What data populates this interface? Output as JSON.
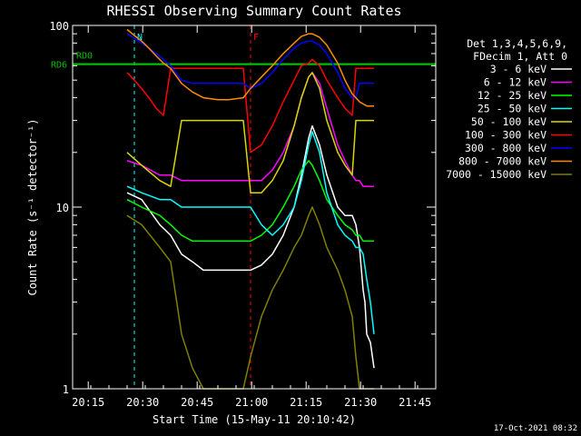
{
  "chart_data": {
    "type": "line",
    "title": "RHESSI Observing Summary Count Rates",
    "xlabel": "Start Time (15-May-11 20:10:42)",
    "ylabel": "Count Rate (s⁻¹ detector⁻¹)",
    "yscale": "log",
    "ylim": [
      1,
      100
    ],
    "xlim_minutes": [
      0,
      100
    ],
    "x_ticks": [
      {
        "label": "20:15",
        "t": 4.3
      },
      {
        "label": "20:30",
        "t": 19.3
      },
      {
        "label": "20:45",
        "t": 34.3
      },
      {
        "label": "21:00",
        "t": 49.3
      },
      {
        "label": "21:15",
        "t": 64.3
      },
      {
        "label": "21:30",
        "t": 79.3
      },
      {
        "label": "21:45",
        "t": 94.3
      }
    ],
    "y_ticks": [
      {
        "label": "1",
        "value": 1
      },
      {
        "label": "10",
        "value": 10
      },
      {
        "label": "100",
        "value": 100
      }
    ],
    "legend": {
      "placement": "top-right",
      "header": [
        "Det 1,3,4,5,6,9,",
        "FDecim 1, Att 0"
      ]
    },
    "series": [
      {
        "name": "3 - 6 keV",
        "color": "#ffffff",
        "x": [
          15,
          19,
          24,
          27,
          30,
          33,
          36,
          40,
          43,
          47,
          49,
          52,
          55,
          58,
          61,
          63,
          65,
          66,
          68,
          70,
          73,
          75,
          77,
          78,
          79,
          80,
          80.5,
          81,
          82,
          83
        ],
        "y": [
          12,
          11,
          8,
          7,
          5.5,
          5,
          4.5,
          4.5,
          4.5,
          4.5,
          4.5,
          4.8,
          5.5,
          7,
          10,
          15,
          24,
          28,
          22,
          15,
          10,
          9,
          9,
          8,
          6,
          3.5,
          3,
          2,
          1.8,
          1.3
        ]
      },
      {
        "name": "6 - 12 keV",
        "color": "#ff00ff",
        "x": [
          15,
          19,
          24,
          27,
          30,
          33,
          36,
          40,
          43,
          47,
          49,
          52,
          55,
          58,
          61,
          63,
          65,
          66,
          68,
          70,
          73,
          75,
          77,
          78,
          79,
          80,
          81,
          82,
          83
        ],
        "y": [
          18,
          17,
          15,
          15,
          14,
          14,
          14,
          14,
          14,
          14,
          14,
          14,
          16,
          20,
          28,
          40,
          52,
          55,
          48,
          35,
          22,
          18,
          15,
          14,
          14,
          13,
          13,
          13,
          13
        ]
      },
      {
        "name": "12 - 25 keV",
        "color": "#00ff00",
        "x": [
          15,
          19,
          24,
          27,
          30,
          33,
          36,
          40,
          43,
          47,
          49,
          52,
          55,
          58,
          61,
          63,
          65,
          66,
          68,
          70,
          73,
          75,
          77,
          78,
          79,
          80,
          81,
          82,
          83
        ],
        "y": [
          11,
          10,
          9,
          8,
          7,
          6.5,
          6.5,
          6.5,
          6.5,
          6.5,
          6.5,
          7,
          8,
          10,
          13,
          16,
          18,
          17,
          14,
          11,
          9,
          8,
          7.5,
          7,
          7,
          6.5,
          6.5,
          6.5,
          6.5
        ]
      },
      {
        "name": "25 - 50 keV",
        "color": "#00ffff",
        "x": [
          15,
          19,
          24,
          27,
          30,
          33,
          36,
          40,
          43,
          47,
          49,
          52,
          55,
          58,
          61,
          63,
          65,
          66,
          68,
          70,
          73,
          75,
          77,
          78,
          79,
          80,
          81,
          82,
          83
        ],
        "y": [
          13,
          12,
          11,
          11,
          10,
          10,
          10,
          10,
          10,
          10,
          10,
          8,
          7,
          8,
          10,
          14,
          22,
          26,
          20,
          12,
          8,
          7,
          6.5,
          6,
          6,
          5.5,
          4,
          3,
          2
        ]
      },
      {
        "name": "50 - 100 keV",
        "color": "#d8d800",
        "x": [
          15,
          19,
          24,
          27,
          30,
          33,
          36,
          40,
          43,
          47,
          49,
          52,
          55,
          58,
          61,
          63,
          65,
          66,
          68,
          70,
          73,
          75,
          77,
          78,
          79,
          80,
          81,
          82,
          83
        ],
        "y": [
          20,
          17,
          14,
          13,
          30,
          30,
          30,
          30,
          30,
          30,
          12,
          12,
          14,
          18,
          28,
          40,
          52,
          55,
          45,
          30,
          20,
          17,
          15,
          30,
          30,
          30,
          30,
          30,
          30
        ]
      },
      {
        "name": "100 - 300 keV",
        "color": "#ff0000",
        "x": [
          15,
          17,
          19,
          21,
          23,
          25,
          27,
          30,
          33,
          36,
          40,
          43,
          47,
          49,
          52,
          55,
          58,
          61,
          63,
          65,
          66,
          68,
          70,
          73,
          75,
          77,
          78,
          79,
          80,
          81,
          82,
          83
        ],
        "y": [
          55,
          50,
          45,
          40,
          35,
          32,
          58,
          58,
          58,
          58,
          58,
          58,
          58,
          20,
          22,
          28,
          38,
          50,
          60,
          62,
          65,
          60,
          50,
          40,
          35,
          32,
          58,
          58,
          58,
          58,
          58,
          58
        ]
      },
      {
        "name": "300 - 800 keV",
        "color": "#0000ff",
        "x": [
          15,
          17,
          19,
          21,
          23,
          25,
          27,
          30,
          33,
          36,
          40,
          43,
          47,
          49,
          52,
          55,
          58,
          61,
          63,
          65,
          66,
          68,
          70,
          73,
          75,
          77,
          78,
          79,
          80,
          81,
          82,
          83
        ],
        "y": [
          90,
          85,
          80,
          75,
          70,
          65,
          60,
          50,
          48,
          48,
          48,
          48,
          48,
          45,
          48,
          55,
          65,
          75,
          80,
          82,
          82,
          78,
          70,
          55,
          45,
          40,
          40,
          48,
          48,
          48,
          48,
          48
        ]
      },
      {
        "name": "800 - 7000 keV",
        "color": "#ff8c00",
        "x": [
          15,
          17,
          19,
          21,
          23,
          25,
          27,
          30,
          33,
          36,
          40,
          43,
          47,
          49,
          52,
          55,
          58,
          61,
          63,
          65,
          66,
          68,
          70,
          73,
          75,
          77,
          78,
          79,
          80,
          81,
          82,
          83
        ],
        "y": [
          95,
          88,
          82,
          75,
          68,
          62,
          58,
          48,
          43,
          40,
          39,
          39,
          40,
          45,
          52,
          60,
          70,
          80,
          87,
          90,
          90,
          86,
          78,
          62,
          50,
          42,
          40,
          38,
          37,
          36,
          36,
          36
        ]
      },
      {
        "name": "7000 - 15000 keV",
        "color": "#808000",
        "x": [
          15,
          19,
          24,
          27,
          30,
          33,
          36,
          40,
          43,
          47,
          49,
          52,
          55,
          58,
          61,
          63,
          65,
          66,
          68,
          70,
          73,
          75,
          77,
          78,
          79,
          80,
          81,
          82,
          83
        ],
        "y": [
          9,
          8,
          6,
          5,
          2,
          1.3,
          1,
          1,
          1,
          1,
          1.5,
          2.5,
          3.5,
          4.5,
          6,
          7,
          9,
          10,
          8,
          6,
          4.5,
          3.5,
          2.5,
          1.5,
          1,
          1,
          1,
          1,
          1
        ]
      }
    ],
    "reference_lines": [
      {
        "label": "RD0",
        "color": "#00c000",
        "y": 61.2
      },
      {
        "label": "RD6",
        "color": "#00c000",
        "y": 61.2
      }
    ],
    "state_markers": [
      {
        "label": "N",
        "color": "#00ffff",
        "t": 17
      },
      {
        "label": "F",
        "color": "#ff0000",
        "t": 49
      }
    ],
    "footer": "17-Oct-2021 08:32"
  }
}
